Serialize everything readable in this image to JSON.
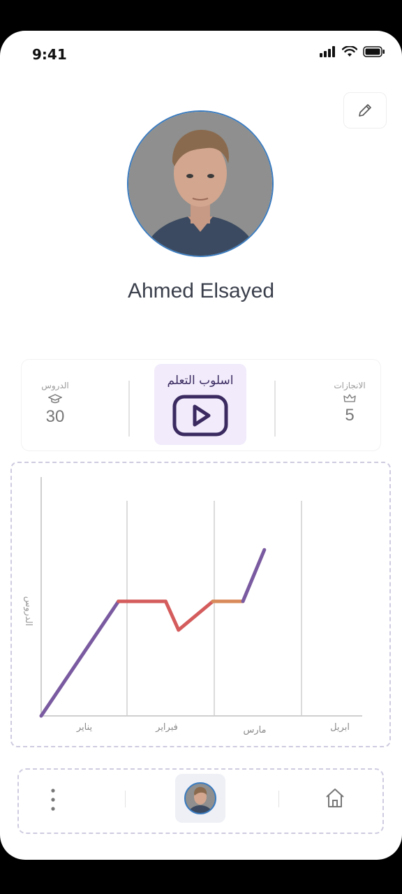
{
  "status_bar": {
    "time": "9:41"
  },
  "profile": {
    "name": "Ahmed Elsayed"
  },
  "stats": {
    "lessons": {
      "label": "الدروس",
      "value": "30",
      "icon": "graduation-cap-icon"
    },
    "learning_style": {
      "label": "اسلوب التعلم",
      "icon": "play-video-icon"
    },
    "achievements": {
      "label": "الانجازات",
      "value": "5",
      "icon": "crown-icon"
    }
  },
  "chart_data": {
    "type": "line",
    "ylabel": "الدروس",
    "categories": [
      "يناير",
      "فبراير",
      "مارس",
      "ابريل"
    ],
    "series": [
      {
        "x": [
          0,
          0.9,
          1.35,
          1.45,
          1.6,
          2.0,
          2.35,
          2.6
        ],
        "y": [
          0,
          4,
          4,
          4,
          3,
          4,
          4,
          5.8
        ],
        "colors": [
          "#7a5aa0",
          "#d55c5c",
          "#d55c5c",
          "#d55c5c",
          "#d55c5c",
          "#d88a5a",
          "#7a5aa0"
        ]
      }
    ],
    "colors": {
      "purple": "#7a5aa0",
      "red": "#d55c5c",
      "orange": "#d88a5a"
    }
  },
  "bottom_nav": {
    "items": [
      {
        "name": "more-icon"
      },
      {
        "name": "profile-avatar"
      },
      {
        "name": "home-icon"
      }
    ]
  }
}
